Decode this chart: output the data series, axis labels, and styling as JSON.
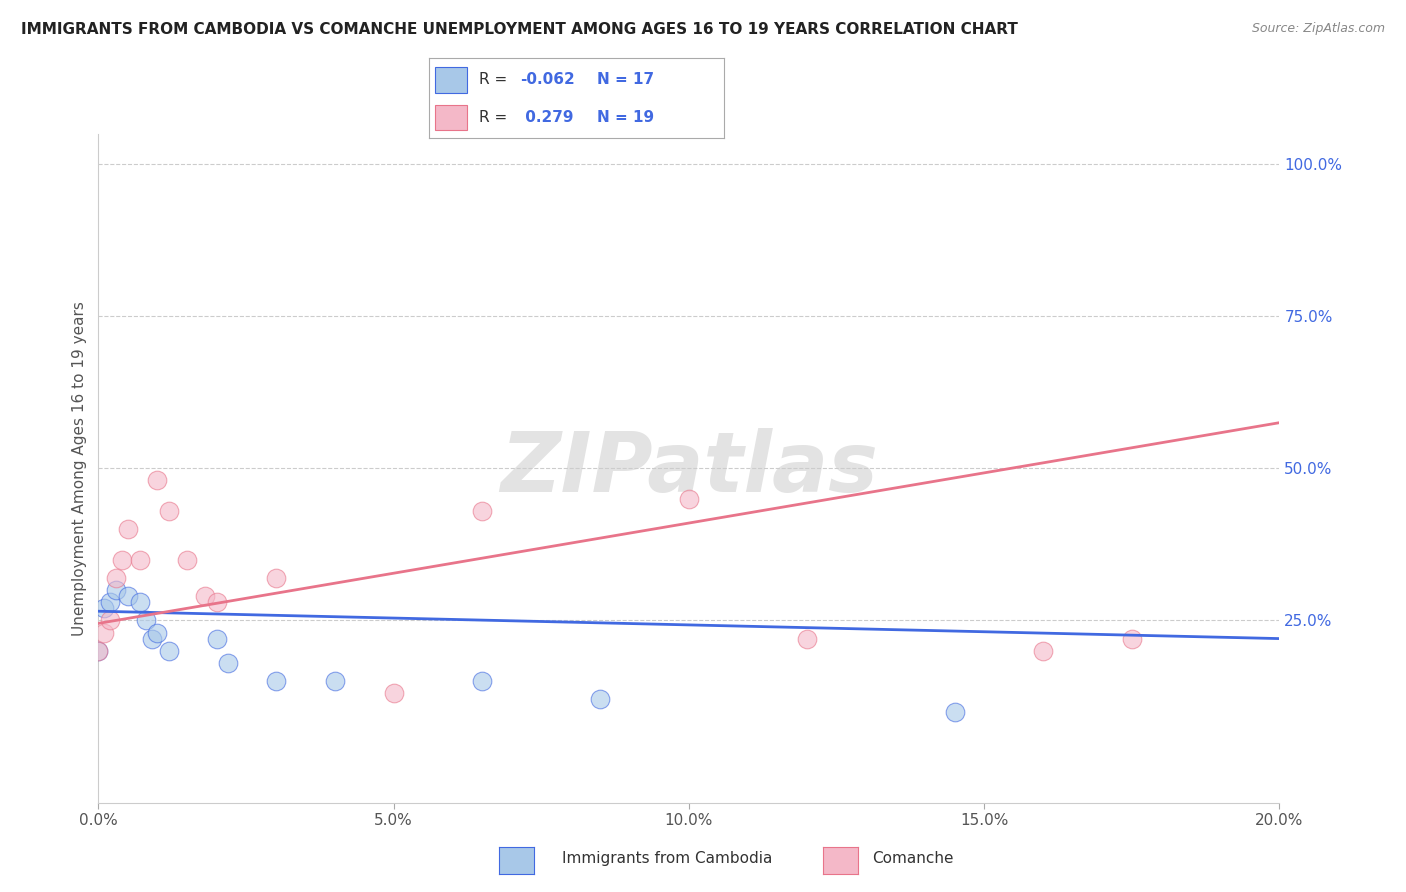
{
  "title": "IMMIGRANTS FROM CAMBODIA VS COMANCHE UNEMPLOYMENT AMONG AGES 16 TO 19 YEARS CORRELATION CHART",
  "source": "Source: ZipAtlas.com",
  "ylabel": "Unemployment Among Ages 16 to 19 years",
  "watermark": "ZIPatlas",
  "legend_label1": "Immigrants from Cambodia",
  "legend_label2": "Comanche",
  "R1": -0.062,
  "N1": 17,
  "R2": 0.279,
  "N2": 19,
  "color1": "#a8c8e8",
  "color2": "#f4b8c8",
  "line_color1": "#4169e1",
  "line_color2": "#e8748a",
  "xlim": [
    0.0,
    0.2
  ],
  "ylim": [
    -0.05,
    1.05
  ],
  "ytick_vals": [
    0.0,
    0.25,
    0.5,
    0.75,
    1.0
  ],
  "ytick_labels": [
    "",
    "25.0%",
    "50.0%",
    "75.0%",
    "100.0%"
  ],
  "scatter1_x": [
    0.0,
    0.001,
    0.002,
    0.003,
    0.005,
    0.007,
    0.008,
    0.009,
    0.01,
    0.012,
    0.02,
    0.022,
    0.03,
    0.04,
    0.065,
    0.085,
    0.145
  ],
  "scatter1_y": [
    0.2,
    0.27,
    0.28,
    0.3,
    0.29,
    0.28,
    0.25,
    0.22,
    0.23,
    0.2,
    0.22,
    0.18,
    0.15,
    0.15,
    0.15,
    0.12,
    0.1
  ],
  "scatter2_x": [
    0.0,
    0.001,
    0.002,
    0.003,
    0.004,
    0.005,
    0.007,
    0.01,
    0.012,
    0.015,
    0.018,
    0.02,
    0.03,
    0.05,
    0.065,
    0.1,
    0.12,
    0.16,
    0.175
  ],
  "scatter2_y": [
    0.2,
    0.23,
    0.25,
    0.32,
    0.35,
    0.4,
    0.35,
    0.48,
    0.43,
    0.35,
    0.29,
    0.28,
    0.32,
    0.13,
    0.43,
    0.45,
    0.22,
    0.2,
    0.22
  ],
  "trendline1_x": [
    0.0,
    0.2
  ],
  "trendline1_y": [
    0.265,
    0.22
  ],
  "trendline2_x": [
    0.0,
    0.2
  ],
  "trendline2_y": [
    0.245,
    0.575
  ],
  "grid_color": "#cccccc",
  "bg_color": "#ffffff",
  "title_fontsize": 11,
  "source_fontsize": 9,
  "tick_fontsize": 11,
  "ylabel_fontsize": 11
}
